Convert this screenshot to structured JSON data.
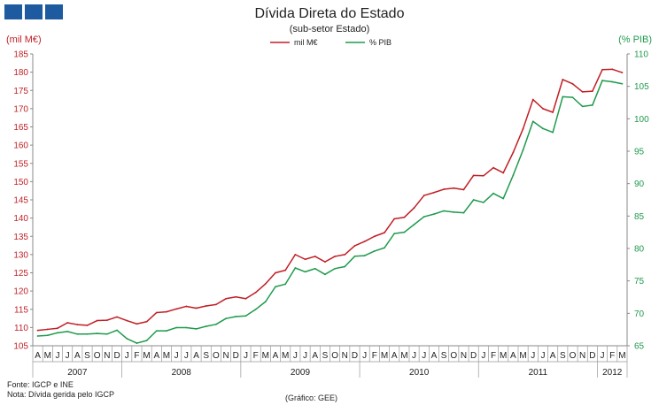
{
  "header": {
    "title": "Dívida Direta do Estado",
    "subtitle": "(sub-setor  Estado)"
  },
  "footer": {
    "source": "Fonte: IGCP e INE",
    "note": "Nota: Dívida gerida pelo IGCP",
    "credit": "(Gráfico: GEE)"
  },
  "colors": {
    "left_series": "#c01f25",
    "right_series": "#1f9a4d",
    "logo": "#1d5aa0"
  },
  "chart_data": {
    "type": "line",
    "title": "Dívida Direta do Estado",
    "subtitle": "(sub-setor  Estado)",
    "ylabel_left": "(mil M€)",
    "ylabel_right": "(% PIB)",
    "ylim_left": [
      105,
      185
    ],
    "ylim_right": [
      65,
      110
    ],
    "yticks_left": [
      105,
      110,
      115,
      120,
      125,
      130,
      135,
      140,
      145,
      150,
      155,
      160,
      165,
      170,
      175,
      180,
      185
    ],
    "yticks_right": [
      65,
      70,
      75,
      80,
      85,
      90,
      95,
      100,
      105,
      110
    ],
    "legend_position": "top-center",
    "grid": false,
    "x": [
      "A",
      "M",
      "J",
      "J",
      "A",
      "S",
      "O",
      "N",
      "D",
      "J",
      "F",
      "M",
      "A",
      "M",
      "J",
      "J",
      "A",
      "S",
      "O",
      "N",
      "D",
      "J",
      "F",
      "M",
      "A",
      "M",
      "J",
      "J",
      "A",
      "S",
      "O",
      "N",
      "D",
      "J",
      "F",
      "M",
      "A",
      "M",
      "J",
      "J",
      "A",
      "S",
      "O",
      "N",
      "D",
      "J",
      "F",
      "M",
      "A",
      "M",
      "J",
      "J",
      "A",
      "S",
      "O",
      "N",
      "D",
      "J",
      "F",
      "M"
    ],
    "year_labels": [
      {
        "label": "2007",
        "start": 0,
        "end": 8
      },
      {
        "label": "2008",
        "start": 9,
        "end": 20
      },
      {
        "label": "2009",
        "start": 21,
        "end": 32
      },
      {
        "label": "2010",
        "start": 33,
        "end": 44
      },
      {
        "label": "2011",
        "start": 45,
        "end": 56
      },
      {
        "label": "2012",
        "start": 57,
        "end": 59
      }
    ],
    "series": [
      {
        "name": "mil M€",
        "axis": "left",
        "values": [
          109.2,
          109.5,
          109.8,
          111.3,
          110.8,
          110.6,
          111.9,
          112.0,
          112.9,
          111.9,
          111.0,
          111.6,
          114.1,
          114.3,
          115.1,
          115.8,
          115.3,
          115.9,
          116.3,
          117.9,
          118.4,
          117.9,
          119.6,
          122.0,
          125.0,
          125.7,
          130.0,
          128.7,
          129.5,
          128.0,
          129.5,
          130.0,
          132.4,
          133.6,
          135.0,
          136.0,
          139.8,
          140.2,
          142.8,
          146.2,
          147.0,
          147.9,
          148.2,
          147.8,
          151.7,
          151.6,
          153.8,
          152.4,
          158.0,
          164.5,
          172.5,
          170.0,
          169.0,
          178.0,
          176.8,
          174.6,
          174.8,
          180.7,
          180.8,
          179.9
        ]
      },
      {
        "name": "% PIB",
        "axis": "right",
        "values": [
          66.5,
          66.6,
          67.0,
          67.2,
          66.8,
          66.8,
          66.9,
          66.8,
          67.4,
          66.1,
          65.4,
          65.8,
          67.3,
          67.3,
          67.8,
          67.8,
          67.6,
          68.0,
          68.3,
          69.2,
          69.5,
          69.6,
          70.6,
          71.8,
          74.1,
          74.5,
          77.0,
          76.4,
          76.9,
          76.0,
          76.9,
          77.2,
          78.8,
          78.9,
          79.6,
          80.1,
          82.3,
          82.5,
          83.7,
          84.9,
          85.3,
          85.8,
          85.6,
          85.5,
          87.5,
          87.1,
          88.5,
          87.7,
          91.3,
          95.2,
          99.6,
          98.5,
          97.9,
          103.4,
          103.3,
          101.9,
          102.1,
          105.9,
          105.7,
          105.4
        ]
      }
    ]
  }
}
